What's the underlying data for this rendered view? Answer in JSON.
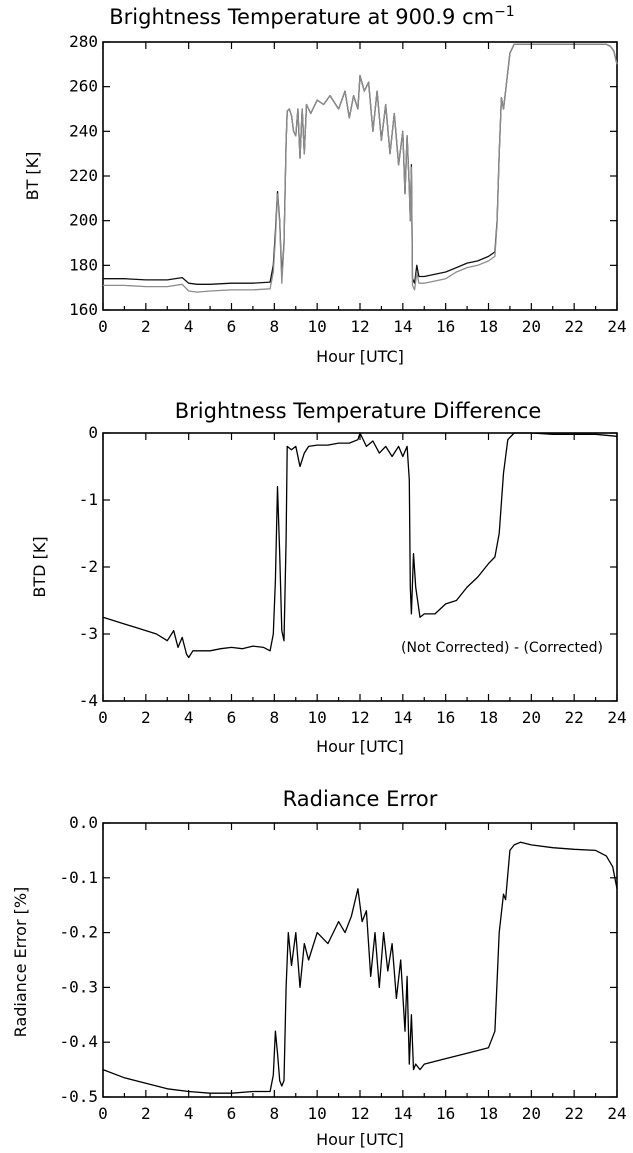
{
  "chart_data": [
    {
      "type": "line",
      "title": "Brightness Temperature at 900.9 cm",
      "title_superscript": "−1",
      "xlabel": "Hour [UTC]",
      "ylabel": "BT [K]",
      "xlim": [
        0,
        24
      ],
      "ylim": [
        160,
        280
      ],
      "xticks": [
        0,
        2,
        4,
        6,
        8,
        10,
        12,
        14,
        16,
        18,
        20,
        22,
        24
      ],
      "yticks": [
        160,
        180,
        200,
        220,
        240,
        260,
        280
      ],
      "grid": false,
      "series": [
        {
          "color": "#111111",
          "x": [
            0,
            1,
            2,
            3,
            3.7,
            4,
            4.4,
            5,
            6,
            7,
            7.8,
            7.95,
            8.05,
            8.15,
            8.25,
            8.35,
            8.45,
            8.55,
            8.6,
            8.7,
            8.8,
            8.9,
            9.0,
            9.1,
            9.2,
            9.3,
            9.4,
            9.5,
            9.7,
            10.0,
            10.3,
            10.6,
            11.0,
            11.3,
            11.5,
            11.7,
            11.9,
            12.0,
            12.2,
            12.4,
            12.6,
            12.8,
            13.0,
            13.2,
            13.4,
            13.6,
            13.8,
            14.0,
            14.1,
            14.2,
            14.3,
            14.35,
            14.4,
            14.45,
            14.55,
            14.65,
            14.75,
            15.0,
            15.5,
            16.0,
            16.5,
            17.0,
            17.5,
            18.0,
            18.3,
            18.4,
            18.5,
            18.6,
            18.7,
            18.8,
            19.0,
            19.2,
            19.5,
            20.0,
            21.0,
            22.0,
            23.0,
            23.5,
            23.7,
            23.85,
            24.0
          ],
          "values": [
            174,
            174,
            173.5,
            173.5,
            174.5,
            172,
            171.5,
            171.5,
            172,
            172,
            172.5,
            180,
            195,
            213,
            200,
            175,
            190,
            235,
            249,
            250,
            247,
            240,
            238,
            250,
            228,
            250,
            230,
            252,
            248,
            254,
            252,
            256,
            250,
            258,
            246,
            256,
            250,
            265,
            258,
            262,
            240,
            258,
            236,
            252,
            230,
            248,
            225,
            240,
            212,
            238,
            215,
            200,
            225,
            174,
            172,
            180,
            175,
            175,
            176,
            177,
            179,
            181,
            182,
            184,
            186,
            200,
            230,
            255,
            250,
            258,
            275,
            279,
            279,
            279,
            279,
            279,
            279,
            279,
            278,
            276,
            270
          ]
        },
        {
          "color": "#8c8c8c",
          "x": [
            0,
            1,
            2,
            3,
            3.7,
            4,
            4.4,
            5,
            6,
            7,
            7.8,
            7.95,
            8.05,
            8.15,
            8.25,
            8.35,
            8.45,
            8.55,
            8.6,
            8.7,
            8.8,
            8.9,
            9.0,
            9.1,
            9.2,
            9.3,
            9.4,
            9.5,
            9.7,
            10.0,
            10.3,
            10.6,
            11.0,
            11.3,
            11.5,
            11.7,
            11.9,
            12.0,
            12.2,
            12.4,
            12.6,
            12.8,
            13.0,
            13.2,
            13.4,
            13.6,
            13.8,
            14.0,
            14.1,
            14.2,
            14.3,
            14.35,
            14.4,
            14.45,
            14.55,
            14.65,
            14.75,
            15.0,
            15.5,
            16.0,
            16.5,
            17.0,
            17.5,
            18.0,
            18.3,
            18.4,
            18.5,
            18.6,
            18.7,
            18.8,
            19.0,
            19.2,
            19.5,
            20.0,
            21.0,
            22.0,
            23.0,
            23.5,
            23.7,
            23.85,
            24.0
          ],
          "values": [
            171,
            171,
            170.5,
            170.5,
            171.5,
            168.5,
            168,
            168.5,
            169,
            169,
            169.5,
            177,
            192,
            212,
            199,
            172,
            189,
            235,
            249,
            250,
            247,
            240,
            238,
            250,
            228,
            250,
            230,
            252,
            248,
            254,
            252,
            256,
            250,
            258,
            246,
            256,
            250,
            265,
            258,
            262,
            240,
            258,
            236,
            252,
            230,
            248,
            225,
            240,
            212,
            238,
            215,
            200,
            224,
            171,
            169,
            177,
            172,
            172,
            173,
            174,
            177,
            179,
            180,
            182,
            184,
            199,
            230,
            255,
            250,
            258,
            275,
            279,
            279,
            279,
            279,
            279,
            279,
            279,
            278,
            276,
            270
          ]
        }
      ]
    },
    {
      "type": "line",
      "title": "Brightness Temperature Difference",
      "xlabel": "Hour [UTC]",
      "ylabel": "BTD [K]",
      "xlim": [
        0,
        24
      ],
      "ylim": [
        -4,
        0
      ],
      "xticks": [
        0,
        2,
        4,
        6,
        8,
        10,
        12,
        14,
        16,
        18,
        20,
        22,
        24
      ],
      "yticks": [
        -4,
        -3,
        -2,
        -1,
        0
      ],
      "grid": false,
      "annotation": "(Not Corrected) - (Corrected)",
      "series": [
        {
          "color": "#000000",
          "x": [
            0,
            0.5,
            1.0,
            1.5,
            2.0,
            2.5,
            3.0,
            3.3,
            3.5,
            3.7,
            3.9,
            4.0,
            4.2,
            4.5,
            5.0,
            5.5,
            6.0,
            6.5,
            7.0,
            7.5,
            7.8,
            7.95,
            8.05,
            8.15,
            8.25,
            8.35,
            8.45,
            8.55,
            8.6,
            8.8,
            9.0,
            9.2,
            9.4,
            9.6,
            10.0,
            10.5,
            11.0,
            11.5,
            11.9,
            12.0,
            12.3,
            12.6,
            12.9,
            13.2,
            13.5,
            13.8,
            14.0,
            14.2,
            14.3,
            14.35,
            14.4,
            14.5,
            14.6,
            14.8,
            15.0,
            15.5,
            16.0,
            16.5,
            17.0,
            17.5,
            18.0,
            18.3,
            18.5,
            18.7,
            18.9,
            19.2,
            19.5,
            20.0,
            21.0,
            22.0,
            23.0,
            24.0
          ],
          "values": [
            -2.75,
            -2.8,
            -2.85,
            -2.9,
            -2.95,
            -3.0,
            -3.1,
            -2.95,
            -3.2,
            -3.05,
            -3.3,
            -3.35,
            -3.25,
            -3.25,
            -3.25,
            -3.22,
            -3.2,
            -3.22,
            -3.18,
            -3.2,
            -3.25,
            -3.0,
            -2.2,
            -0.8,
            -1.8,
            -2.95,
            -3.1,
            -1.6,
            -0.2,
            -0.25,
            -0.2,
            -0.5,
            -0.3,
            -0.2,
            -0.18,
            -0.18,
            -0.15,
            -0.15,
            -0.1,
            0.0,
            -0.2,
            -0.12,
            -0.3,
            -0.2,
            -0.35,
            -0.2,
            -0.35,
            -0.2,
            -0.7,
            -2.3,
            -2.7,
            -1.8,
            -2.3,
            -2.75,
            -2.7,
            -2.7,
            -2.55,
            -2.5,
            -2.3,
            -2.15,
            -1.95,
            -1.85,
            -1.5,
            -0.6,
            -0.1,
            0.0,
            0.0,
            0.0,
            -0.02,
            -0.02,
            -0.02,
            -0.05
          ]
        }
      ]
    },
    {
      "type": "line",
      "title": "Radiance Error",
      "xlabel": "Hour [UTC]",
      "ylabel": "Radiance Error [%]",
      "xlim": [
        0,
        24
      ],
      "ylim": [
        -0.5,
        0.0
      ],
      "xticks": [
        0,
        2,
        4,
        6,
        8,
        10,
        12,
        14,
        16,
        18,
        20,
        22,
        24
      ],
      "yticks": [
        -0.5,
        -0.4,
        -0.3,
        -0.2,
        -0.1,
        0.0
      ],
      "ytick_labels": [
        "-0.5",
        "-0.4",
        "-0.3",
        "-0.2",
        "-0.1",
        "0.0"
      ],
      "grid": false,
      "series": [
        {
          "color": "#000000",
          "x": [
            0,
            1,
            2,
            3,
            4,
            5,
            6,
            7,
            7.8,
            7.95,
            8.05,
            8.15,
            8.25,
            8.35,
            8.45,
            8.55,
            8.65,
            8.8,
            9.0,
            9.2,
            9.4,
            9.6,
            10.0,
            10.5,
            11.0,
            11.3,
            11.6,
            11.9,
            12.1,
            12.3,
            12.5,
            12.7,
            12.9,
            13.1,
            13.3,
            13.5,
            13.7,
            13.9,
            14.1,
            14.2,
            14.3,
            14.4,
            14.5,
            14.6,
            14.8,
            15.0,
            16.0,
            17.0,
            18.0,
            18.3,
            18.5,
            18.7,
            18.8,
            19.0,
            19.2,
            19.5,
            20.0,
            21.0,
            22.0,
            23.0,
            23.5,
            23.8,
            24.0
          ],
          "values": [
            -0.45,
            -0.465,
            -0.475,
            -0.485,
            -0.49,
            -0.493,
            -0.493,
            -0.49,
            -0.49,
            -0.46,
            -0.38,
            -0.42,
            -0.47,
            -0.48,
            -0.47,
            -0.3,
            -0.2,
            -0.26,
            -0.2,
            -0.3,
            -0.22,
            -0.25,
            -0.2,
            -0.22,
            -0.18,
            -0.2,
            -0.17,
            -0.12,
            -0.18,
            -0.16,
            -0.28,
            -0.2,
            -0.3,
            -0.2,
            -0.27,
            -0.22,
            -0.32,
            -0.25,
            -0.38,
            -0.28,
            -0.44,
            -0.35,
            -0.45,
            -0.44,
            -0.45,
            -0.44,
            -0.43,
            -0.42,
            -0.41,
            -0.38,
            -0.2,
            -0.13,
            -0.14,
            -0.05,
            -0.04,
            -0.035,
            -0.04,
            -0.045,
            -0.048,
            -0.05,
            -0.06,
            -0.08,
            -0.12
          ]
        }
      ]
    }
  ]
}
